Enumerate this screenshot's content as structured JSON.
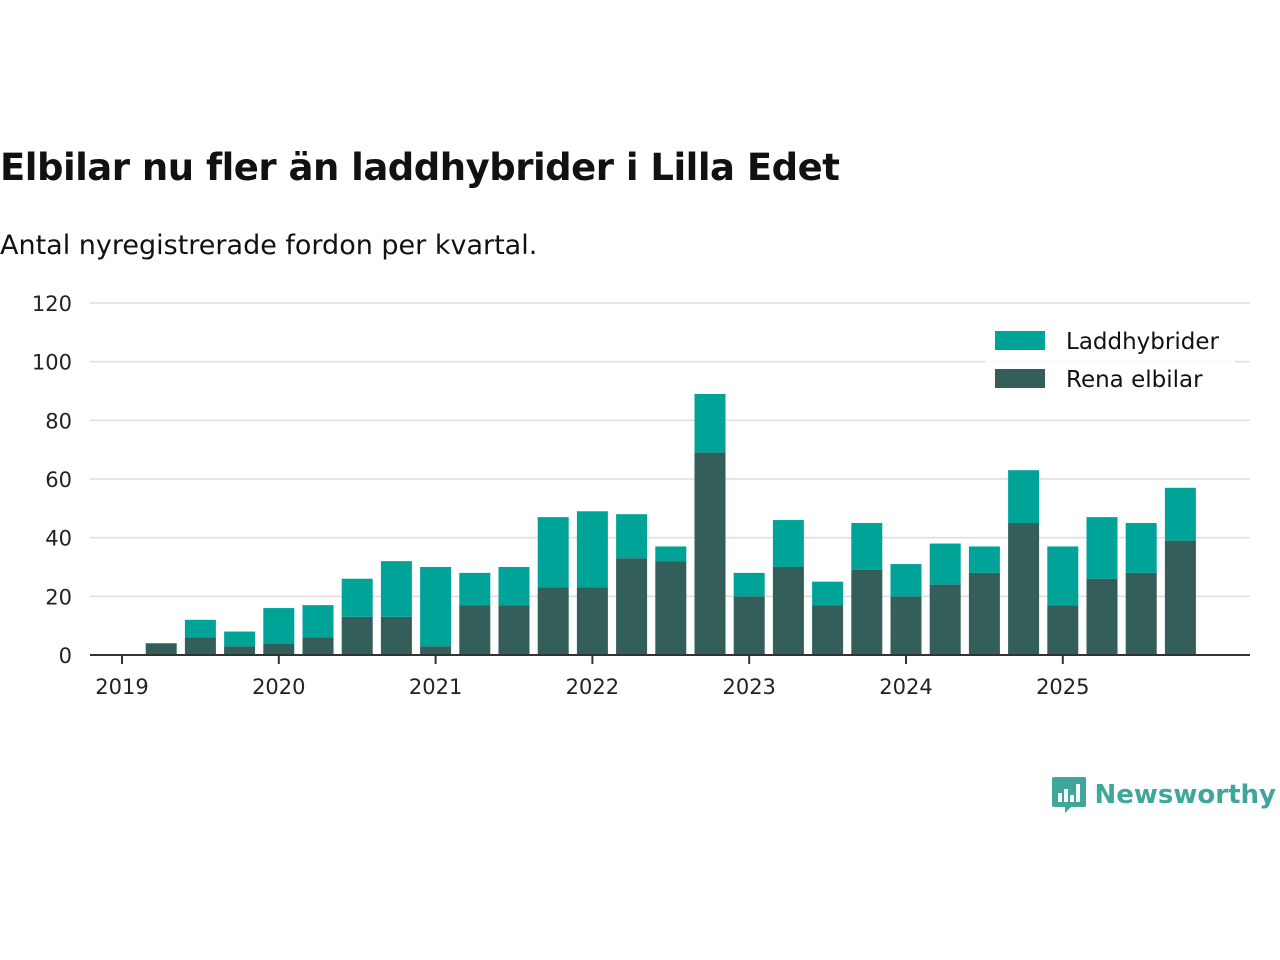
{
  "chart_data": {
    "type": "bar",
    "stacked": true,
    "title": "Elbilar nu fler än laddhybrider i Lilla Edet",
    "subtitle": "Antal nyregistrerade fordon per kvartal.",
    "xlabel": "",
    "ylabel": "",
    "ylim": [
      0,
      120
    ],
    "yticks": [
      "0",
      "20",
      "40",
      "60",
      "80",
      "100",
      "120"
    ],
    "xticks": [
      "2019",
      "2020",
      "2021",
      "2022",
      "2023",
      "2024",
      "2025"
    ],
    "categories": [
      "2019 Q1",
      "2019 Q2",
      "2019 Q3",
      "2019 Q4",
      "2020 Q1",
      "2020 Q2",
      "2020 Q3",
      "2020 Q4",
      "2021 Q1",
      "2021 Q2",
      "2021 Q3",
      "2021 Q4",
      "2022 Q1",
      "2022 Q2",
      "2022 Q3",
      "2022 Q4",
      "2023 Q1",
      "2023 Q2",
      "2023 Q3",
      "2023 Q4",
      "2024 Q1",
      "2024 Q2",
      "2024 Q3",
      "2024 Q4",
      "2025 Q1",
      "2025 Q2",
      "2025 Q3",
      "2025 Q4"
    ],
    "series": [
      {
        "name": "Rena elbilar",
        "color": "#335e5a",
        "values": [
          0,
          4,
          6,
          3,
          4,
          6,
          13,
          13,
          3,
          17,
          17,
          23,
          23,
          33,
          32,
          69,
          20,
          30,
          17,
          29,
          20,
          24,
          28,
          45,
          17,
          26,
          28,
          39
        ]
      },
      {
        "name": "Laddhybrider",
        "color": "#00a398",
        "values": [
          0,
          0,
          6,
          5,
          12,
          11,
          13,
          19,
          27,
          11,
          13,
          24,
          26,
          15,
          5,
          20,
          8,
          16,
          8,
          16,
          11,
          14,
          9,
          18,
          20,
          21,
          17,
          18
        ]
      }
    ],
    "legend": {
      "position": "top-right",
      "entries": [
        "Laddhybrider",
        "Rena elbilar"
      ]
    },
    "grid": true
  },
  "brand": {
    "name": "Newsworthy",
    "logo_icon": "bar-chart-speech-icon",
    "color": "#3fa69a"
  },
  "colors": {
    "grid": "#dddddd",
    "axis": "#333333"
  }
}
